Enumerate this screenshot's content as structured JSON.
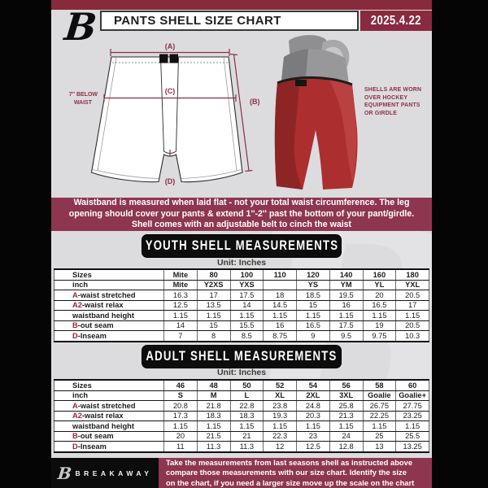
{
  "header": {
    "title": "PANTS SHELL SIZE CHART",
    "date": "2025.4.22"
  },
  "diagram": {
    "dim_a": "(A)",
    "dim_b": "(B)",
    "dim_c": "(C)",
    "dim_d": "(D)",
    "waist_note_1": "7'' BELOW",
    "waist_note_2": "WAIST",
    "photo_caption": [
      "SHELLS ARE WORN",
      "OVER HOCKEY",
      "EQUIPMENT PANTS",
      "OR GIRDLE"
    ]
  },
  "banner": {
    "lines": [
      "Waistband is measured when laid flat - not your total waist circumference. The leg",
      "opening should cover your pants & extend 1''-2'' past the bottom of your pant/girdle.",
      "Shell comes with an adjustable belt to cinch the waist"
    ]
  },
  "youth": {
    "title": "YOUTH SHELL MEASUREMENTS",
    "unit": "Unit: Inches",
    "rows": [
      {
        "prefix": "",
        "label": "Sizes",
        "header": true,
        "values": [
          "Mite",
          "80",
          "100",
          "110",
          "120",
          "140",
          "160",
          "180"
        ]
      },
      {
        "prefix": "",
        "label": "inch",
        "header": true,
        "values": [
          "Mite",
          "Y2XS",
          "YXS",
          "",
          "YS",
          "YM",
          "YL",
          "YXL"
        ]
      },
      {
        "prefix": "A",
        "label": "-waist stretched",
        "header": false,
        "values": [
          "16.3",
          "17",
          "17.5",
          "18",
          "18.5",
          "19.5",
          "20",
          "20.5"
        ]
      },
      {
        "prefix": "A2",
        "label": "-waist relax",
        "header": false,
        "values": [
          "12.5",
          "13.5",
          "14",
          "14.5",
          "15",
          "16",
          "16.5",
          "17"
        ]
      },
      {
        "prefix": "",
        "label": "waistband height",
        "header": false,
        "values": [
          "1.15",
          "1.15",
          "1.15",
          "1.15",
          "1.15",
          "1.15",
          "1.15",
          "1.15"
        ]
      },
      {
        "prefix": "B",
        "label": "-out seam",
        "header": false,
        "values": [
          "14",
          "15",
          "15.5",
          "16",
          "16.5",
          "17.5",
          "19",
          "20.5"
        ]
      },
      {
        "prefix": "D",
        "label": "-Inseam",
        "header": false,
        "values": [
          "7",
          "8",
          "8.5",
          "8.75",
          "9",
          "9.5",
          "9.75",
          "10.3"
        ]
      }
    ]
  },
  "adult": {
    "title": "ADULT SHELL MEASUREMENTS",
    "unit": "Unit: Inches",
    "rows": [
      {
        "prefix": "",
        "label": "Sizes",
        "header": true,
        "values": [
          "46",
          "48",
          "50",
          "52",
          "54",
          "56",
          "58",
          "60"
        ]
      },
      {
        "prefix": "",
        "label": "inch",
        "header": true,
        "values": [
          "S",
          "M",
          "L",
          "XL",
          "2XL",
          "3XL",
          "Goalie",
          "Goalie+"
        ]
      },
      {
        "prefix": "A",
        "label": "-waist stretched",
        "header": false,
        "values": [
          "20.8",
          "21.8",
          "22.8",
          "23.8",
          "24.8",
          "25.8",
          "26.75",
          "27.75"
        ]
      },
      {
        "prefix": "A2",
        "label": "-waist relax",
        "header": false,
        "values": [
          "17.3",
          "18.3",
          "18.3",
          "19.3",
          "20.3",
          "21.3",
          "22.25",
          "23.25"
        ]
      },
      {
        "prefix": "",
        "label": "waistband height",
        "header": false,
        "values": [
          "1.15",
          "1.15",
          "1.15",
          "1.15",
          "1.15",
          "1.15",
          "1.15",
          "1.15"
        ]
      },
      {
        "prefix": "B",
        "label": "-out seam",
        "header": false,
        "values": [
          "20",
          "21.5",
          "21",
          "22.3",
          "23",
          "24",
          "25",
          "25.5"
        ]
      },
      {
        "prefix": "D",
        "label": "-Inseam",
        "header": false,
        "values": [
          "11",
          "11.3",
          "11.3",
          "12",
          "12.5",
          "12.8",
          "13",
          "13.25"
        ]
      }
    ]
  },
  "footer": {
    "brand": "BREAKAWAY",
    "logo_letter": "B",
    "lines": [
      "Take the measurements from last seasons shell as instructed above",
      "compare those measurements  with our size chart. Identify the size",
      "on the chart, if you need a larger size move up the scale on the chart"
    ]
  },
  "colors": {
    "maroon_accent": "#8c2f45",
    "banner_maroon": "#8e3650",
    "strip_maroon": "#862a3c",
    "black": "#0d0d0d",
    "page_bg": "#dcdcde",
    "shell_red": "#ad2e2e"
  }
}
